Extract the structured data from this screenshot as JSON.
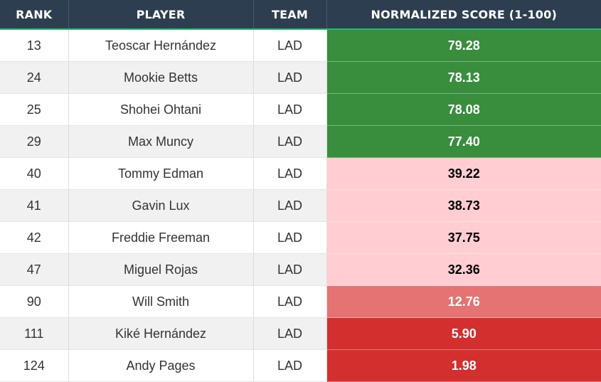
{
  "columns": {
    "rank": "RANK",
    "player": "PLAYER",
    "team": "TEAM",
    "score": "NORMALIZED SCORE (1-100)"
  },
  "rows": [
    {
      "rank": "13",
      "player": "Teoscar Hernández",
      "team": "LAD",
      "score": "79.28",
      "bg": "#388e3c",
      "fg": "#ffffff"
    },
    {
      "rank": "24",
      "player": "Mookie Betts",
      "team": "LAD",
      "score": "78.13",
      "bg": "#388e3c",
      "fg": "#ffffff"
    },
    {
      "rank": "25",
      "player": "Shohei Ohtani",
      "team": "LAD",
      "score": "78.08",
      "bg": "#388e3c",
      "fg": "#ffffff"
    },
    {
      "rank": "29",
      "player": "Max Muncy",
      "team": "LAD",
      "score": "77.40",
      "bg": "#388e3c",
      "fg": "#ffffff"
    },
    {
      "rank": "40",
      "player": "Tommy Edman",
      "team": "LAD",
      "score": "39.22",
      "bg": "#ffcdd2",
      "fg": "#000000"
    },
    {
      "rank": "41",
      "player": "Gavin Lux",
      "team": "LAD",
      "score": "38.73",
      "bg": "#ffcdd2",
      "fg": "#000000"
    },
    {
      "rank": "42",
      "player": "Freddie Freeman",
      "team": "LAD",
      "score": "37.75",
      "bg": "#ffcdd2",
      "fg": "#000000"
    },
    {
      "rank": "47",
      "player": "Miguel Rojas",
      "team": "LAD",
      "score": "32.36",
      "bg": "#ffcdd2",
      "fg": "#000000"
    },
    {
      "rank": "90",
      "player": "Will Smith",
      "team": "LAD",
      "score": "12.76",
      "bg": "#e57373",
      "fg": "#ffffff"
    },
    {
      "rank": "111",
      "player": "Kiké Hernández",
      "team": "LAD",
      "score": "5.90",
      "bg": "#d32f2f",
      "fg": "#ffffff"
    },
    {
      "rank": "124",
      "player": "Andy Pages",
      "team": "LAD",
      "score": "1.98",
      "bg": "#d32f2f",
      "fg": "#ffffff"
    }
  ]
}
